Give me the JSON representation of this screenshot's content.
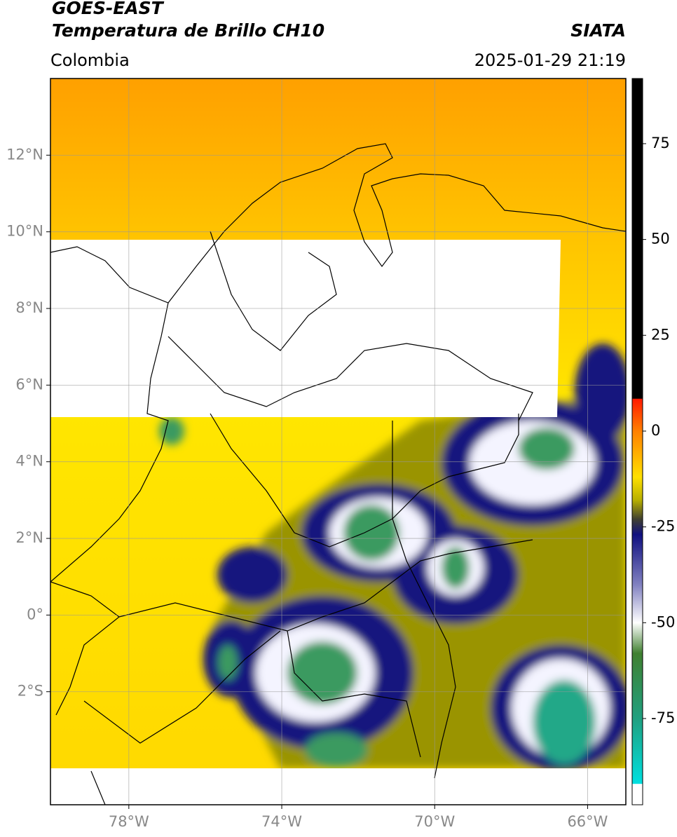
{
  "header": {
    "title": "GOES-EAST",
    "subtitle": "Temperatura de Brillo CH10",
    "source": "SIATA",
    "region": "Colombia",
    "datetime": "2025-01-29 21:19"
  },
  "map": {
    "xlim": [
      -80.05,
      -65
    ],
    "ylim": [
      -4.95,
      14
    ],
    "xticks": [
      {
        "value": -78,
        "label": "78°W"
      },
      {
        "value": -74,
        "label": "74°W"
      },
      {
        "value": -70,
        "label": "70°W"
      },
      {
        "value": -66,
        "label": "66°W"
      }
    ],
    "yticks": [
      {
        "value": 12,
        "label": "12°N"
      },
      {
        "value": 10,
        "label": "10°N"
      },
      {
        "value": 8,
        "label": "8°N"
      },
      {
        "value": 6,
        "label": "6°N"
      },
      {
        "value": 4,
        "label": "4°N"
      },
      {
        "value": 2,
        "label": "2°N"
      },
      {
        "value": 0,
        "label": "0°"
      },
      {
        "value": -2,
        "label": "2°S"
      }
    ],
    "grid": true
  },
  "colorbar": {
    "lim": [
      -97.5,
      92
    ],
    "ticks": [
      75,
      50,
      25,
      0,
      -25,
      -50,
      -75
    ],
    "stops": [
      {
        "value": 92,
        "color": "#000000"
      },
      {
        "value": 8.5,
        "color": "#000000"
      },
      {
        "value": 8.4,
        "color": "#ff1a00"
      },
      {
        "value": 0,
        "color": "#ff8000"
      },
      {
        "value": -12,
        "color": "#ffe000"
      },
      {
        "value": -18,
        "color": "#b8b000"
      },
      {
        "value": -23,
        "color": "#404030"
      },
      {
        "value": -27,
        "color": "#101080"
      },
      {
        "value": -40,
        "color": "#8080c0"
      },
      {
        "value": -50,
        "color": "#ffffff"
      },
      {
        "value": -58,
        "color": "#408030"
      },
      {
        "value": -75,
        "color": "#20a080"
      },
      {
        "value": -92,
        "color": "#00e0e0"
      },
      {
        "value": -92.1,
        "color": "#ffffff"
      },
      {
        "value": -97.5,
        "color": "#ffffff"
      }
    ]
  }
}
